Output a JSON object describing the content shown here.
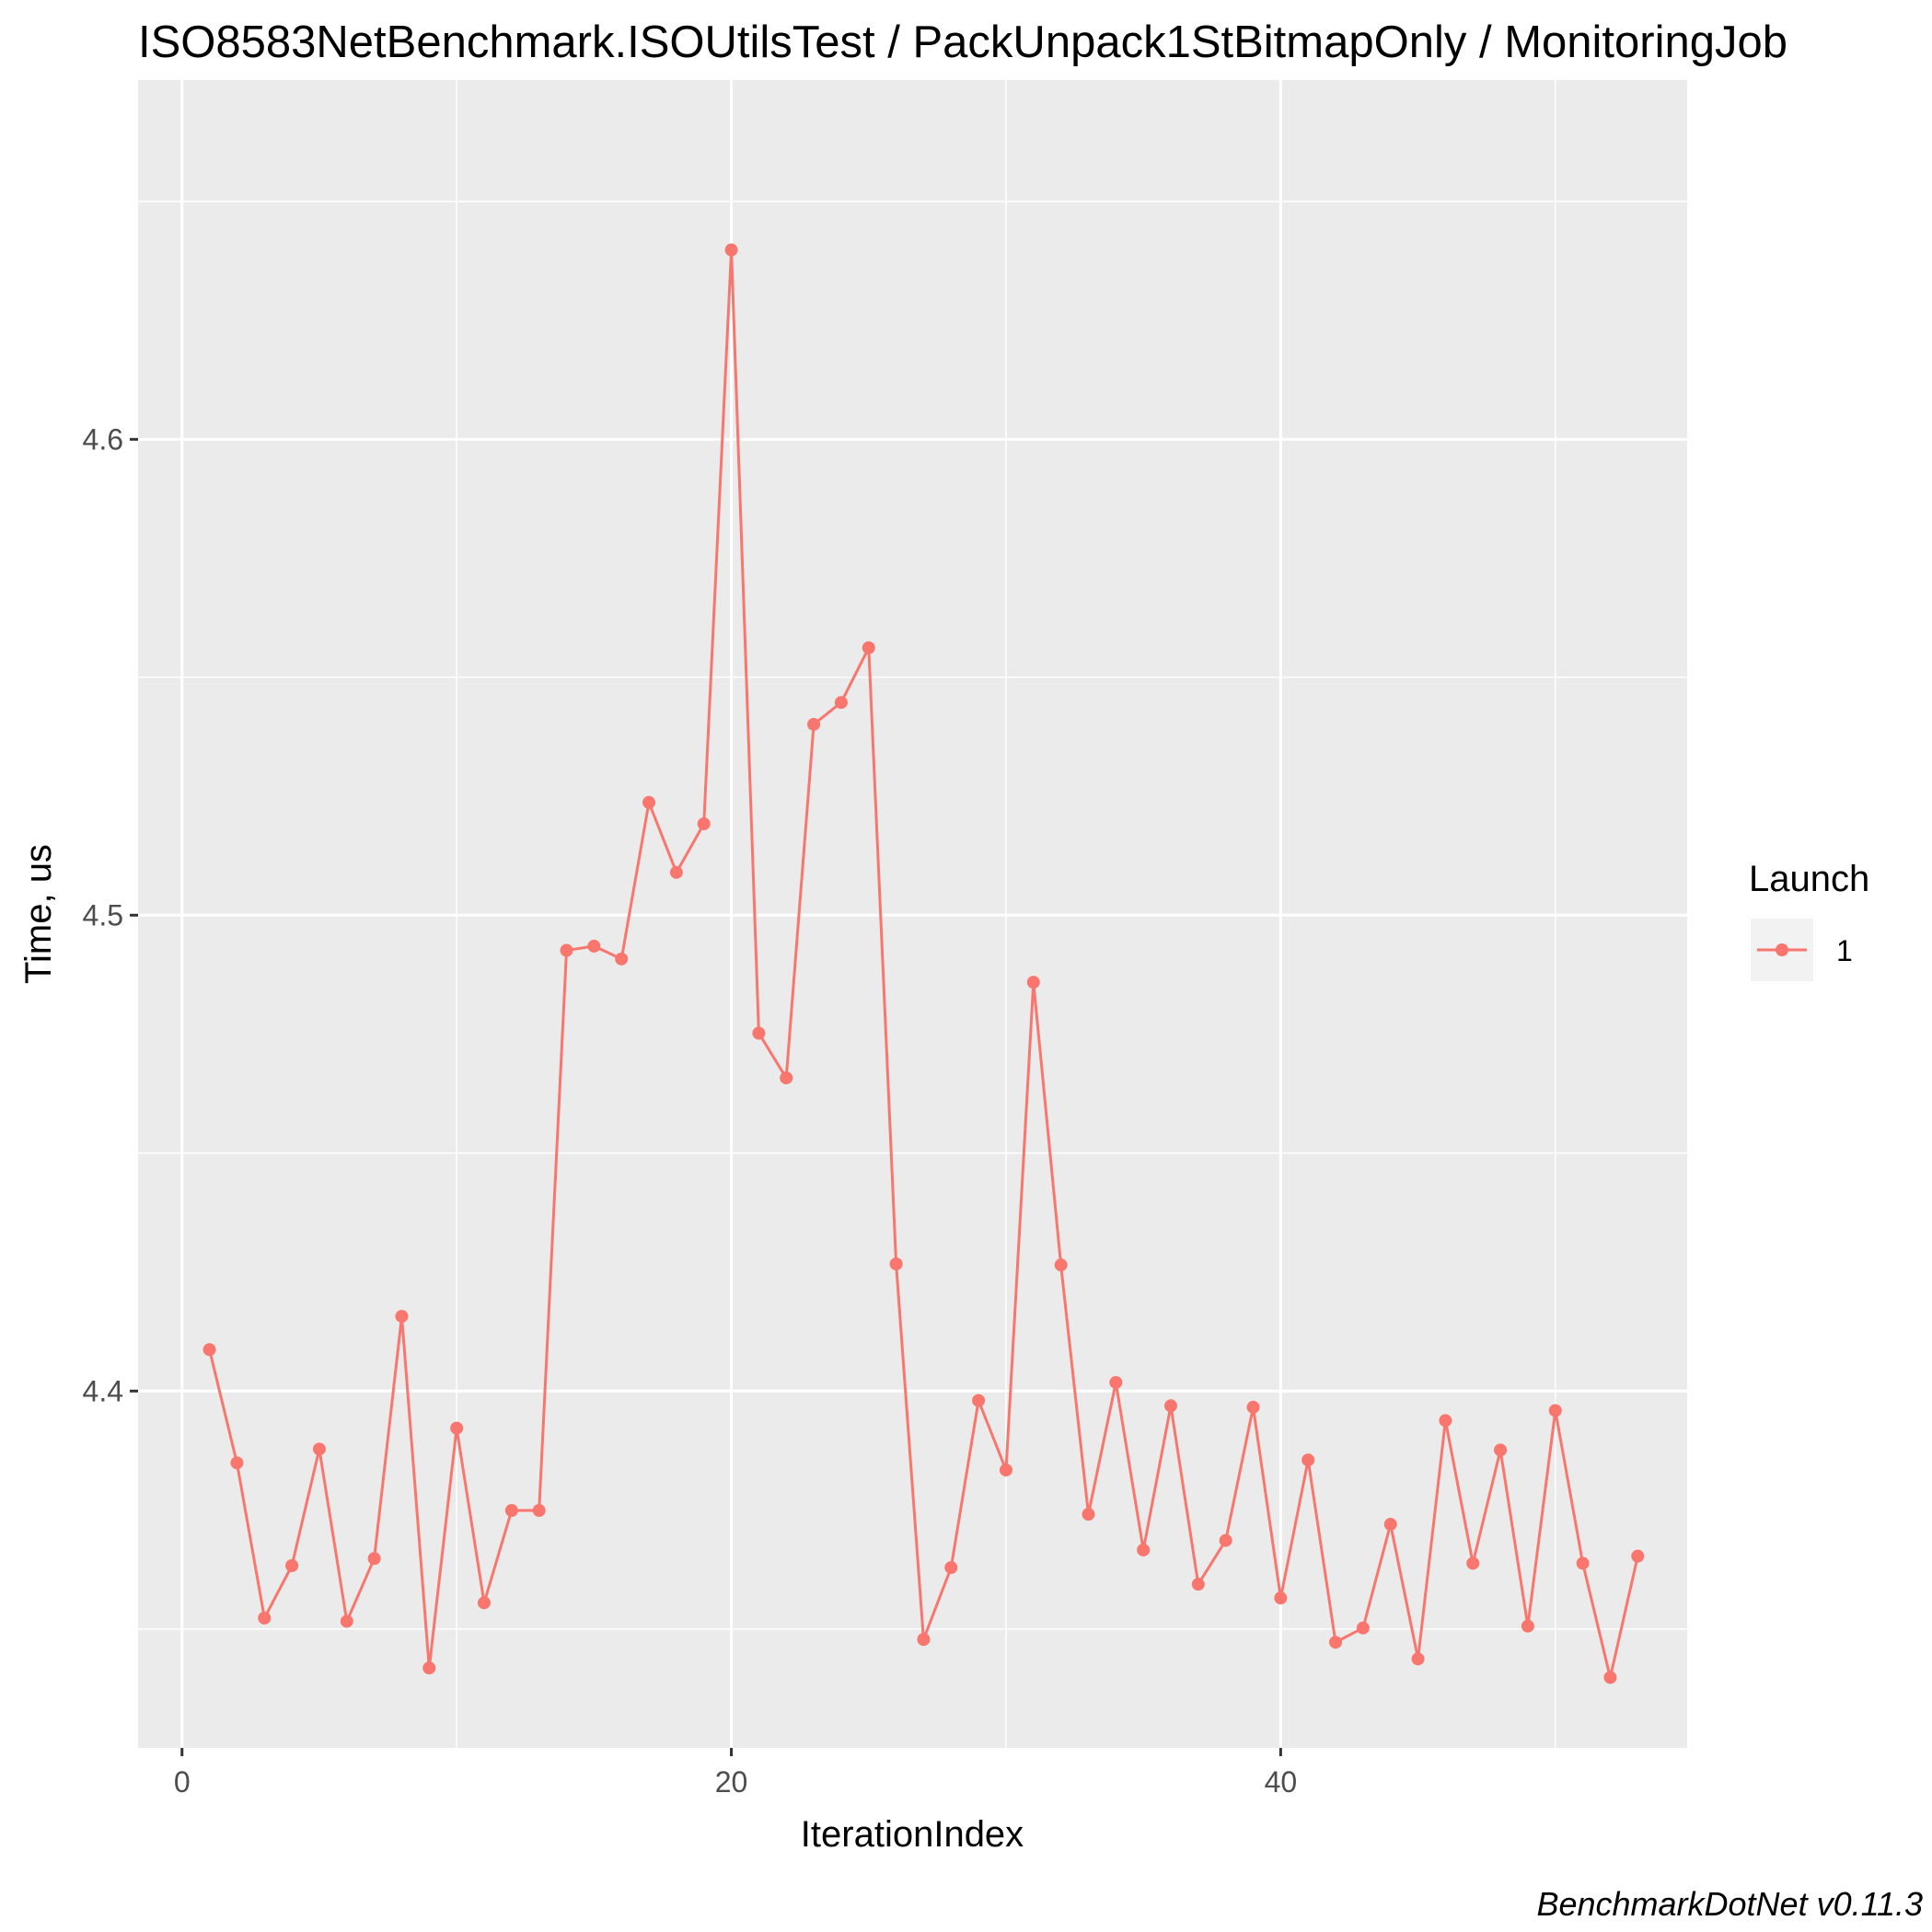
{
  "chart_data": {
    "type": "line",
    "title": "ISO8583NetBenchmark.ISOUtilsTest / PackUnpack1StBitmapOnly / MonitoringJob",
    "xlabel": "IterationIndex",
    "ylabel": "Time, us",
    "caption": "BenchmarkDotNet v0.11.3",
    "xlim": [
      -1.6,
      54.8
    ],
    "ylim": [
      4.325,
      4.6755
    ],
    "x_ticks": [
      0,
      20,
      40
    ],
    "x_tick_labels": [
      "0",
      "20",
      "40"
    ],
    "y_ticks": [
      4.4,
      4.5,
      4.6
    ],
    "y_tick_labels": [
      "4.4",
      "4.5",
      "4.6"
    ],
    "grid": true,
    "legend": {
      "title": "Launch",
      "position": "right"
    },
    "series": [
      {
        "name": "1",
        "color": "#F8766D",
        "x": [
          1,
          2,
          3,
          4,
          5,
          6,
          7,
          8,
          9,
          10,
          11,
          12,
          13,
          14,
          15,
          16,
          17,
          18,
          19,
          20,
          21,
          22,
          23,
          24,
          25,
          26,
          27,
          28,
          29,
          30,
          31,
          32,
          33,
          34,
          35,
          36,
          37,
          38,
          39,
          40,
          41,
          42,
          43,
          44,
          45,
          46,
          47,
          48,
          49,
          50,
          51,
          52,
          53
        ],
        "values": [
          4.4087,
          4.3849,
          4.3523,
          4.3633,
          4.3878,
          4.3516,
          4.3648,
          4.4157,
          4.3418,
          4.3922,
          4.3555,
          4.3749,
          4.3749,
          4.4926,
          4.4935,
          4.4908,
          4.5237,
          4.509,
          4.5192,
          4.6398,
          4.4752,
          4.4658,
          4.5401,
          4.5447,
          4.5562,
          4.4267,
          4.3478,
          4.3629,
          4.398,
          4.3834,
          4.4859,
          4.4265,
          4.3741,
          4.4018,
          4.3666,
          4.3969,
          4.3594,
          4.3686,
          4.3966,
          4.3565,
          4.3855,
          4.3472,
          4.3502,
          4.372,
          4.3437,
          4.3938,
          4.3638,
          4.3876,
          4.3506,
          4.3959,
          4.3638,
          4.3398,
          4.3653
        ]
      }
    ]
  }
}
